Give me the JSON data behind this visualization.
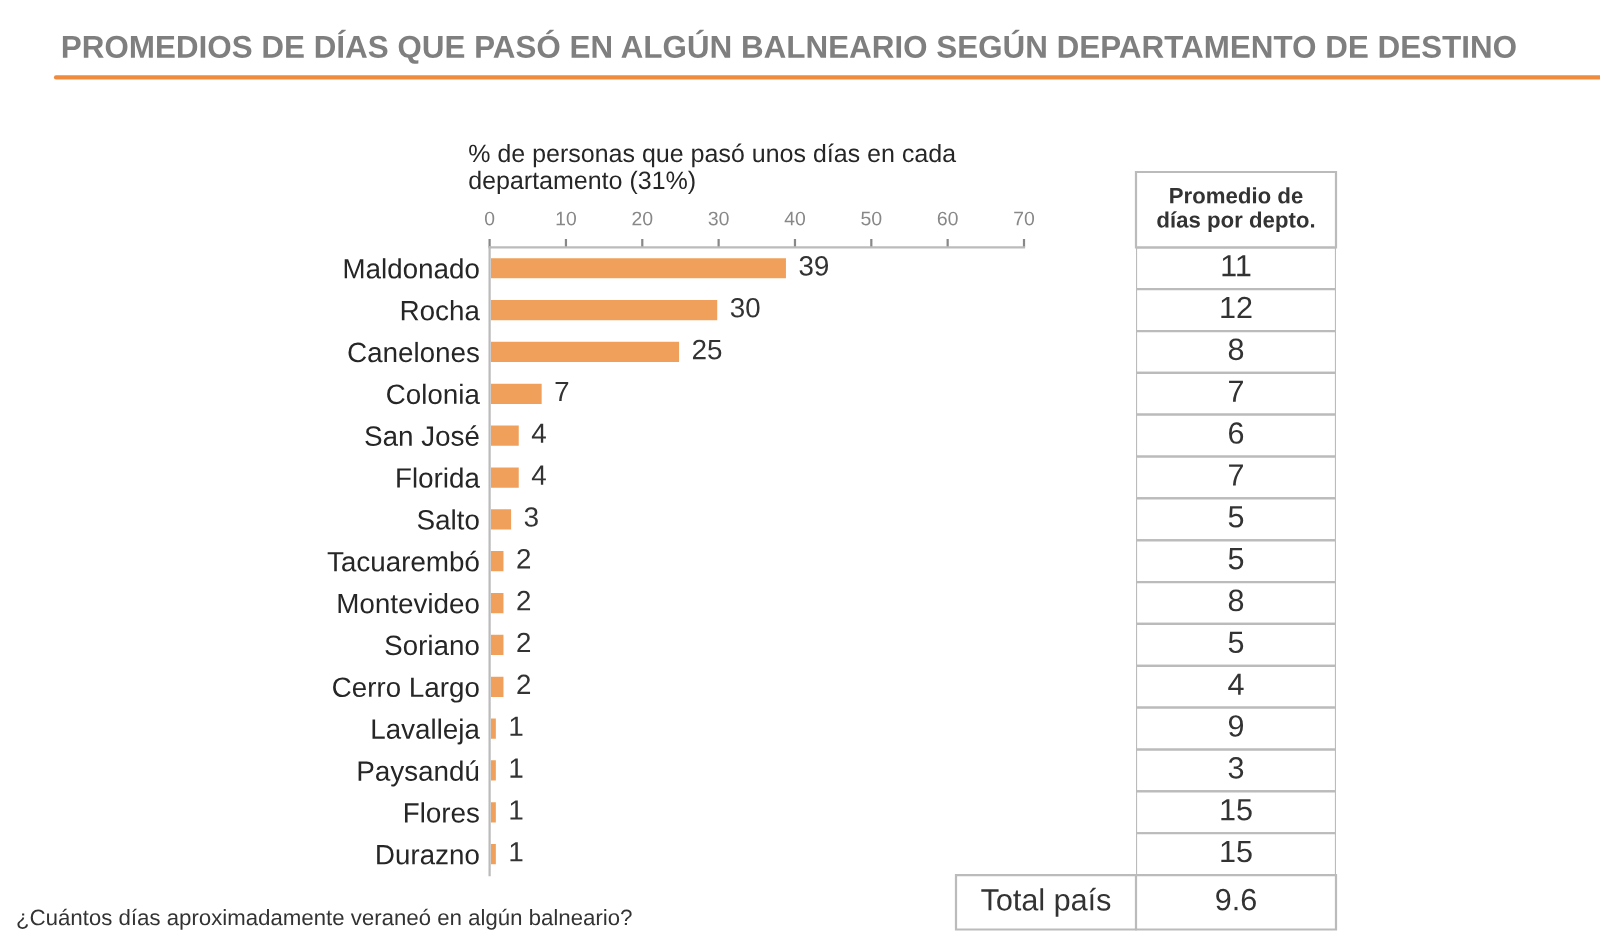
{
  "chart_data": [
    {
      "type": "bar",
      "orientation": "horizontal",
      "title": "PROMEDIOS DE DÍAS QUE PASÓ EN ALGÚN BALNEARIO SEGÚN DEPARTAMENTO DE DESTINO",
      "xlabel": "% de personas que pasó unos días en cada\ndepartamento (31%)",
      "categories": [
        "Maldonado",
        "Rocha",
        "Canelones",
        "Colonia",
        "San José",
        "Florida",
        "Salto",
        "Tacuarembó",
        "Montevideo",
        "Soriano",
        "Cerro Largo",
        "Lavalleja",
        "Paysandú",
        "Flores",
        "Durazno"
      ],
      "values": [
        39,
        30,
        25,
        7,
        4,
        4,
        3,
        2,
        2,
        2,
        2,
        1,
        1,
        1,
        1
      ],
      "color": "#f0a05a",
      "xlim": [
        0,
        70
      ],
      "xticks": [
        0,
        10,
        20,
        30,
        40,
        50,
        60,
        70
      ],
      "grid": false,
      "data_labels": true,
      "annotations": [
        "¿Cuántos días aproximadamente veraneó en algún balneario?"
      ]
    },
    {
      "type": "heatmap",
      "categories": [
        "Promedio de\ndías por depto."
      ],
      "y_categories": [
        null,
        null,
        null,
        null,
        null,
        null,
        null,
        null,
        null,
        null,
        null,
        null,
        null,
        null,
        null
      ],
      "cells": [
        [
          11
        ],
        [
          12
        ],
        [
          8
        ],
        [
          7
        ],
        [
          6
        ],
        [
          7
        ],
        [
          5
        ],
        [
          5
        ],
        [
          8
        ],
        [
          5
        ],
        [
          4
        ],
        [
          9
        ],
        [
          3
        ],
        [
          15
        ],
        [
          15
        ]
      ],
      "data_labels": true,
      "annotations": [
        "Total país",
        "9.6"
      ]
    }
  ]
}
